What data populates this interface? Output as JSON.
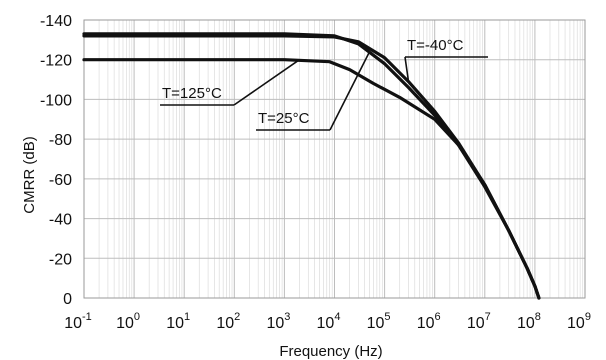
{
  "chart_data": {
    "type": "line",
    "title": "",
    "xlabel": "Frequency (Hz)",
    "ylabel": "CMRR (dB)",
    "x_scale": "log",
    "x_decades": [
      -1,
      0,
      1,
      2,
      3,
      4,
      5,
      6,
      7,
      8,
      9
    ],
    "xlim": [
      0.1,
      1000000000
    ],
    "ylim": [
      0,
      -140
    ],
    "y_ticks": [
      "-140",
      "-120",
      "-100",
      "-80",
      "-60",
      "-40",
      "-20",
      "0"
    ],
    "grid": true,
    "series": [
      {
        "name": "T=-40°C",
        "x": [
          0.1,
          1000,
          10000,
          30000,
          100000,
          300000,
          1000000,
          3000000,
          10000000,
          30000000,
          70000000,
          100000000,
          120000000
        ],
        "y": [
          -132,
          -132,
          -131.5,
          -129,
          -121,
          -109,
          -94,
          -78,
          -57,
          -34,
          -15,
          -6,
          0
        ]
      },
      {
        "name": "T=25°C",
        "x": [
          0.1,
          1000,
          10000,
          30000,
          100000,
          300000,
          1000000,
          3000000,
          10000000,
          30000000,
          70000000,
          100000000,
          120000000
        ],
        "y": [
          -133,
          -133,
          -132,
          -128,
          -118,
          -106,
          -92,
          -77,
          -56,
          -34,
          -15,
          -6,
          0
        ]
      },
      {
        "name": "T=125°C",
        "x": [
          0.1,
          1000,
          8000,
          20000,
          60000,
          200000,
          1000000,
          3000000,
          10000000,
          30000000,
          70000000,
          100000000,
          120000000
        ],
        "y": [
          -120,
          -120,
          -119,
          -115,
          -108,
          -101,
          -90,
          -77,
          -57,
          -34,
          -15,
          -6,
          0
        ]
      }
    ],
    "annotations": [
      {
        "text": "T=-40°C",
        "series": "T=-40°C",
        "point_x": 300000,
        "point_y": -109
      },
      {
        "text": "T=125°C",
        "series": "T=125°C",
        "point_x": 2000,
        "point_y": -120
      },
      {
        "text": "T=25°C",
        "series": "T=25°C",
        "point_x": 50000,
        "point_y": -124
      }
    ]
  }
}
